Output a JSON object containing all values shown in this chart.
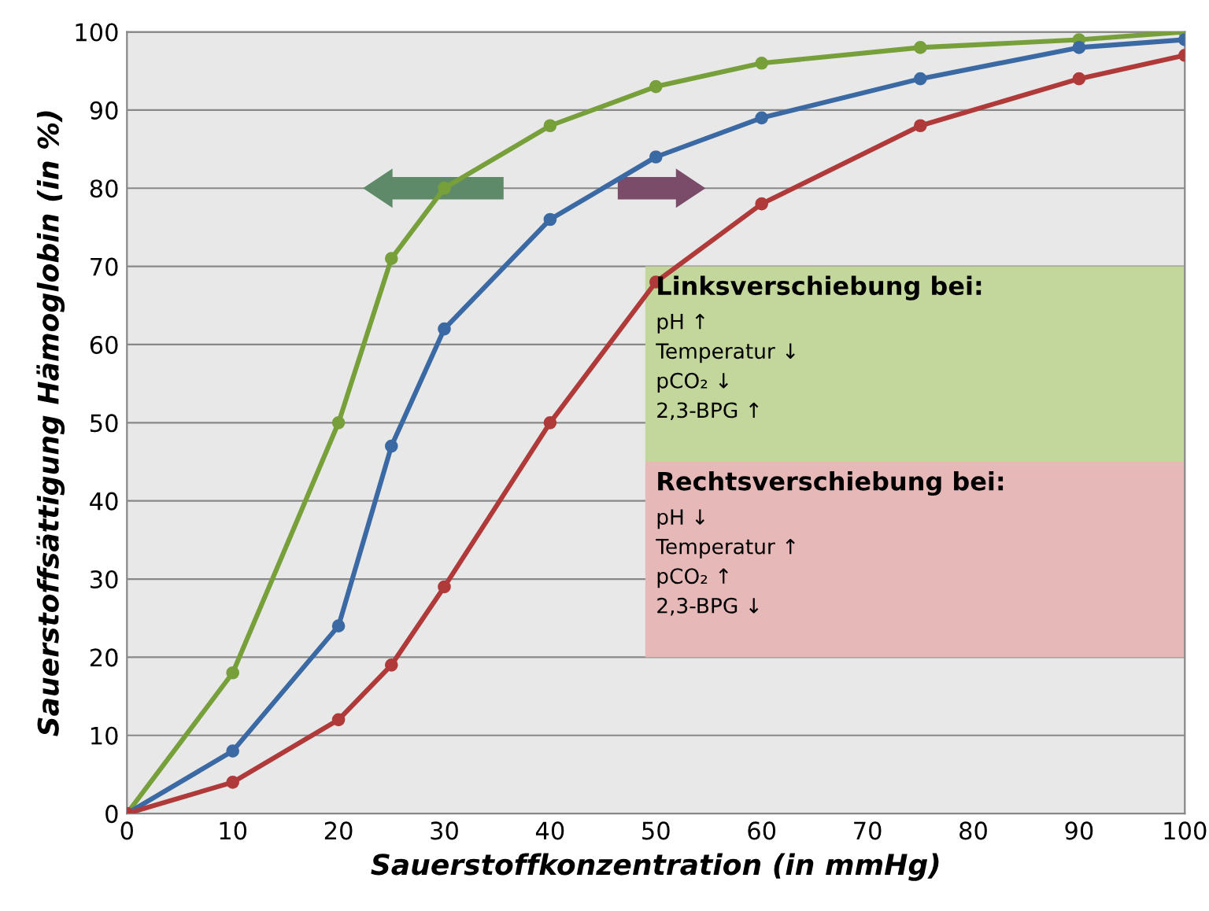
{
  "chart_data": {
    "type": "line",
    "xlabel": "Sauerstoffkonzentration (in mmHg)",
    "ylabel": "Sauerstoffsättigung Hämoglobin (in %)",
    "xlim": [
      0,
      100
    ],
    "xticks": [
      0,
      10,
      20,
      30,
      40,
      50,
      60,
      70,
      80,
      90,
      100
    ],
    "ylim": [
      0,
      100
    ],
    "yticks": [
      0,
      10,
      20,
      30,
      40,
      50,
      60,
      70,
      80,
      90,
      100
    ],
    "grid": "y",
    "marker": "circle",
    "line_style": "solid",
    "series": [
      {
        "color": "#77a03b",
        "x": [
          0,
          10,
          20,
          25,
          30,
          40,
          50,
          60,
          75,
          90,
          100
        ],
        "values": [
          0,
          18,
          50,
          71,
          80,
          88,
          93,
          96,
          98,
          99,
          100
        ]
      },
      {
        "color": "#3b69a3",
        "x": [
          0,
          10,
          20,
          25,
          30,
          40,
          50,
          60,
          75,
          90,
          100
        ],
        "values": [
          0,
          8,
          24,
          47,
          62,
          76,
          84,
          89,
          94,
          98,
          99
        ]
      },
      {
        "color": "#b03a3a",
        "x": [
          0,
          10,
          20,
          25,
          30,
          40,
          50,
          60,
          75,
          90,
          100
        ],
        "values": [
          0,
          4,
          12,
          19,
          29,
          50,
          68,
          78,
          88,
          94,
          97
        ]
      }
    ],
    "annotations": [
      "Linksverschiebung bei:\npH ↑\nTemperatur ↓\npCO₂ ↓\n2,3-BPG ↑",
      "Rechtsverschiebung bei:\npH ↓\nTemperatur ↑\npCO₂ ↑\n2,3-BPG ↓"
    ]
  }
}
